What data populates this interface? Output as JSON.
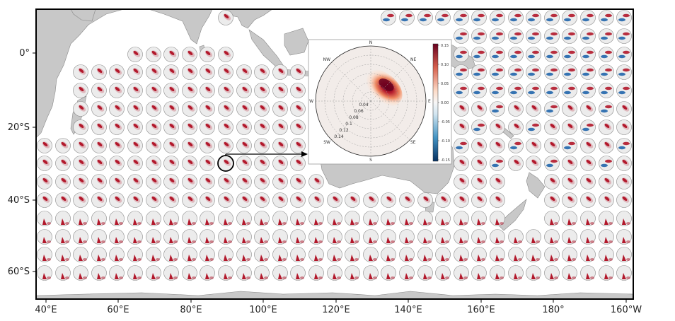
{
  "map": {
    "lon_labels": [
      "40°E",
      "60°E",
      "80°E",
      "100°E",
      "120°E",
      "140°E",
      "160°E",
      "180°",
      "160°W"
    ],
    "lat_labels": [
      "0°",
      "20°S",
      "40°S",
      "60°S"
    ]
  },
  "inset": {
    "compass": {
      "n": "N",
      "ne": "NE",
      "e": "E",
      "se": "SE",
      "s": "S",
      "sw": "SW",
      "w": "W",
      "nw": "NW"
    },
    "radial_ticks": [
      "0.04",
      "0.06",
      "0.08",
      "0.1",
      "0.12",
      "0.14"
    ],
    "colorbar_ticks": [
      "0.15",
      "0.10",
      "0.05",
      "0.00",
      "-0.05",
      "-0.10",
      "-0.15"
    ],
    "colors": {
      "high": "#67001f",
      "mid": "#f7f7f7",
      "low": "#053061"
    }
  },
  "colors": {
    "land": "#c8c8c8",
    "ocean": "#ffffff",
    "positive": "#b2182b",
    "negative": "#2166ac"
  }
}
